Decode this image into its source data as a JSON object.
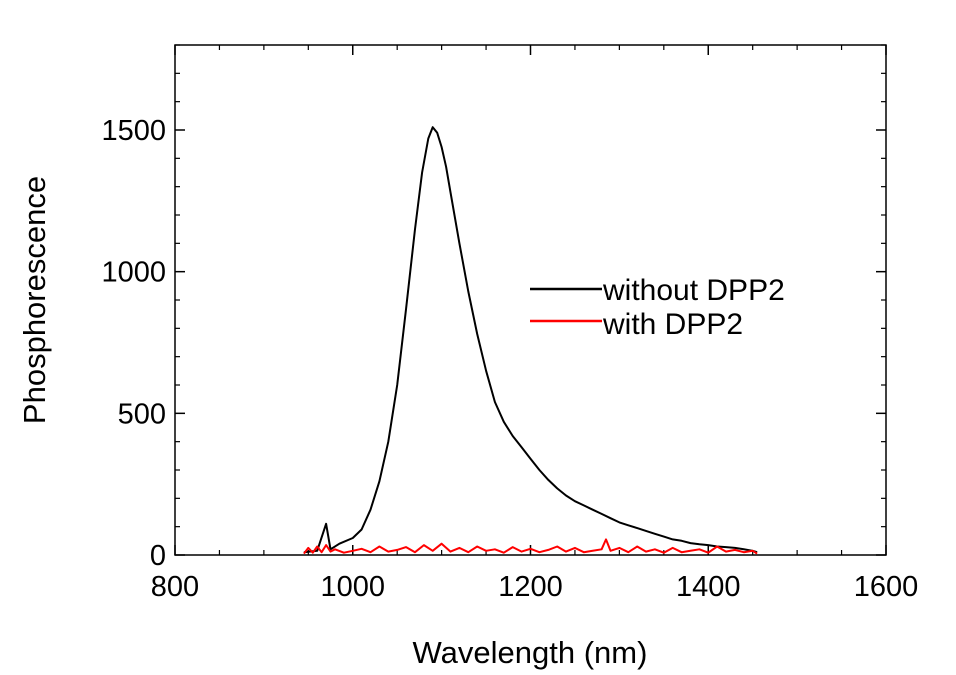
{
  "chart_data": {
    "type": "line",
    "title": "",
    "xlabel": "Wavelength (nm)",
    "ylabel": "Phosphorescence",
    "xlim": [
      800,
      1600
    ],
    "ylim": [
      0,
      1800
    ],
    "x_ticks": [
      "800",
      "1000",
      "1200",
      "1400",
      "1600"
    ],
    "y_ticks": [
      "0",
      "500",
      "1000",
      "1500"
    ],
    "grid": false,
    "legend_position": "right",
    "series": [
      {
        "name": "without DPP2",
        "color": "#000000",
        "x": [
          945,
          960,
          970,
          975,
          985,
          1000,
          1010,
          1020,
          1030,
          1040,
          1050,
          1060,
          1070,
          1078,
          1085,
          1090,
          1095,
          1100,
          1105,
          1110,
          1120,
          1130,
          1140,
          1150,
          1160,
          1170,
          1180,
          1190,
          1200,
          1210,
          1220,
          1230,
          1240,
          1250,
          1260,
          1270,
          1280,
          1290,
          1300,
          1310,
          1320,
          1330,
          1340,
          1350,
          1360,
          1370,
          1380,
          1390,
          1400,
          1410,
          1420,
          1430,
          1440,
          1450,
          1455
        ],
        "y": [
          10,
          15,
          110,
          20,
          40,
          60,
          90,
          160,
          260,
          400,
          600,
          870,
          1150,
          1350,
          1470,
          1510,
          1490,
          1440,
          1370,
          1280,
          1100,
          930,
          780,
          650,
          540,
          470,
          420,
          380,
          340,
          300,
          265,
          235,
          210,
          190,
          175,
          160,
          145,
          130,
          115,
          105,
          95,
          85,
          75,
          65,
          55,
          50,
          42,
          38,
          35,
          30,
          28,
          25,
          20,
          15,
          10
        ]
      },
      {
        "name": "with DPP2",
        "color": "#ff0000",
        "x": [
          945,
          950,
          955,
          960,
          965,
          970,
          975,
          980,
          990,
          1000,
          1010,
          1020,
          1030,
          1040,
          1050,
          1060,
          1070,
          1080,
          1090,
          1100,
          1110,
          1120,
          1130,
          1140,
          1150,
          1160,
          1170,
          1180,
          1190,
          1200,
          1210,
          1220,
          1230,
          1240,
          1250,
          1260,
          1270,
          1280,
          1285,
          1290,
          1300,
          1310,
          1320,
          1330,
          1340,
          1350,
          1360,
          1370,
          1380,
          1390,
          1400,
          1410,
          1420,
          1430,
          1440,
          1450,
          1455
        ],
        "y": [
          5,
          25,
          8,
          30,
          10,
          35,
          12,
          20,
          8,
          15,
          22,
          10,
          30,
          12,
          18,
          28,
          10,
          35,
          15,
          40,
          12,
          25,
          10,
          30,
          15,
          20,
          8,
          28,
          12,
          22,
          10,
          18,
          30,
          12,
          25,
          10,
          15,
          20,
          55,
          15,
          25,
          10,
          30,
          12,
          20,
          8,
          25,
          10,
          15,
          20,
          8,
          30,
          12,
          18,
          10,
          15,
          5
        ]
      }
    ]
  }
}
